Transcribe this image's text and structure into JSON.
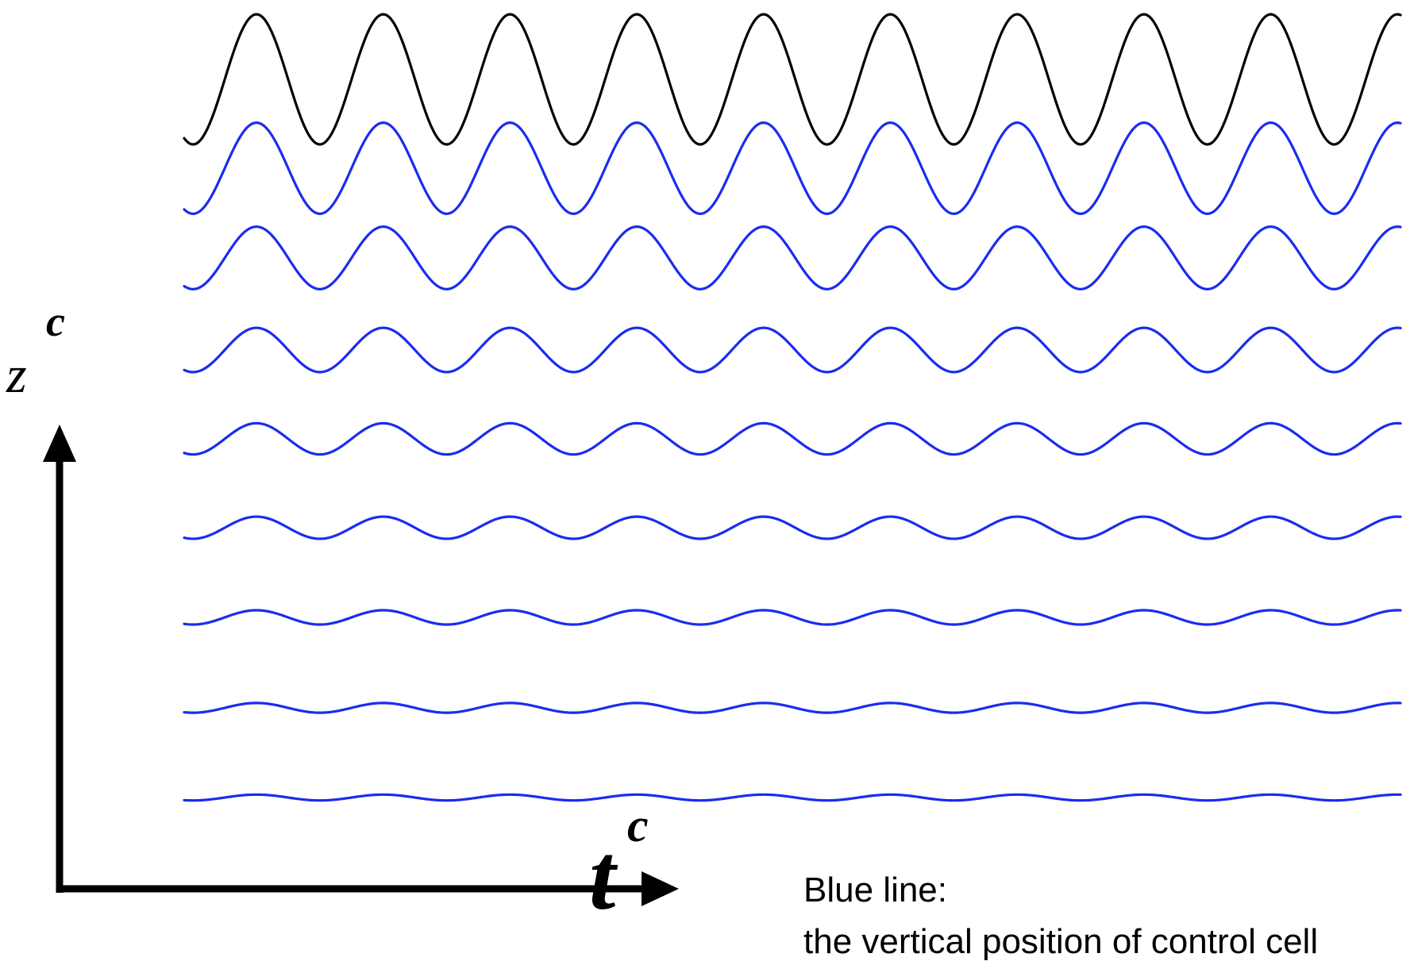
{
  "colors": {
    "reference_wave": "#000000",
    "layer_wave": "#1a2cf0",
    "axis": "#000000"
  },
  "axes": {
    "vertical_label": "z",
    "vertical_superscript": "c",
    "horizontal_label": "t",
    "horizontal_superscript": "c"
  },
  "waves": {
    "cycles_shown": 9.6,
    "amplitudes": [
      1.0,
      0.7,
      0.48,
      0.34,
      0.24,
      0.17,
      0.11,
      0.075,
      0.045
    ],
    "series": [
      "reference",
      "layer",
      "layer",
      "layer",
      "layer",
      "layer",
      "layer",
      "layer",
      "layer"
    ]
  },
  "note": {
    "title": "Blue line:",
    "body": "the vertical position of control cell"
  }
}
